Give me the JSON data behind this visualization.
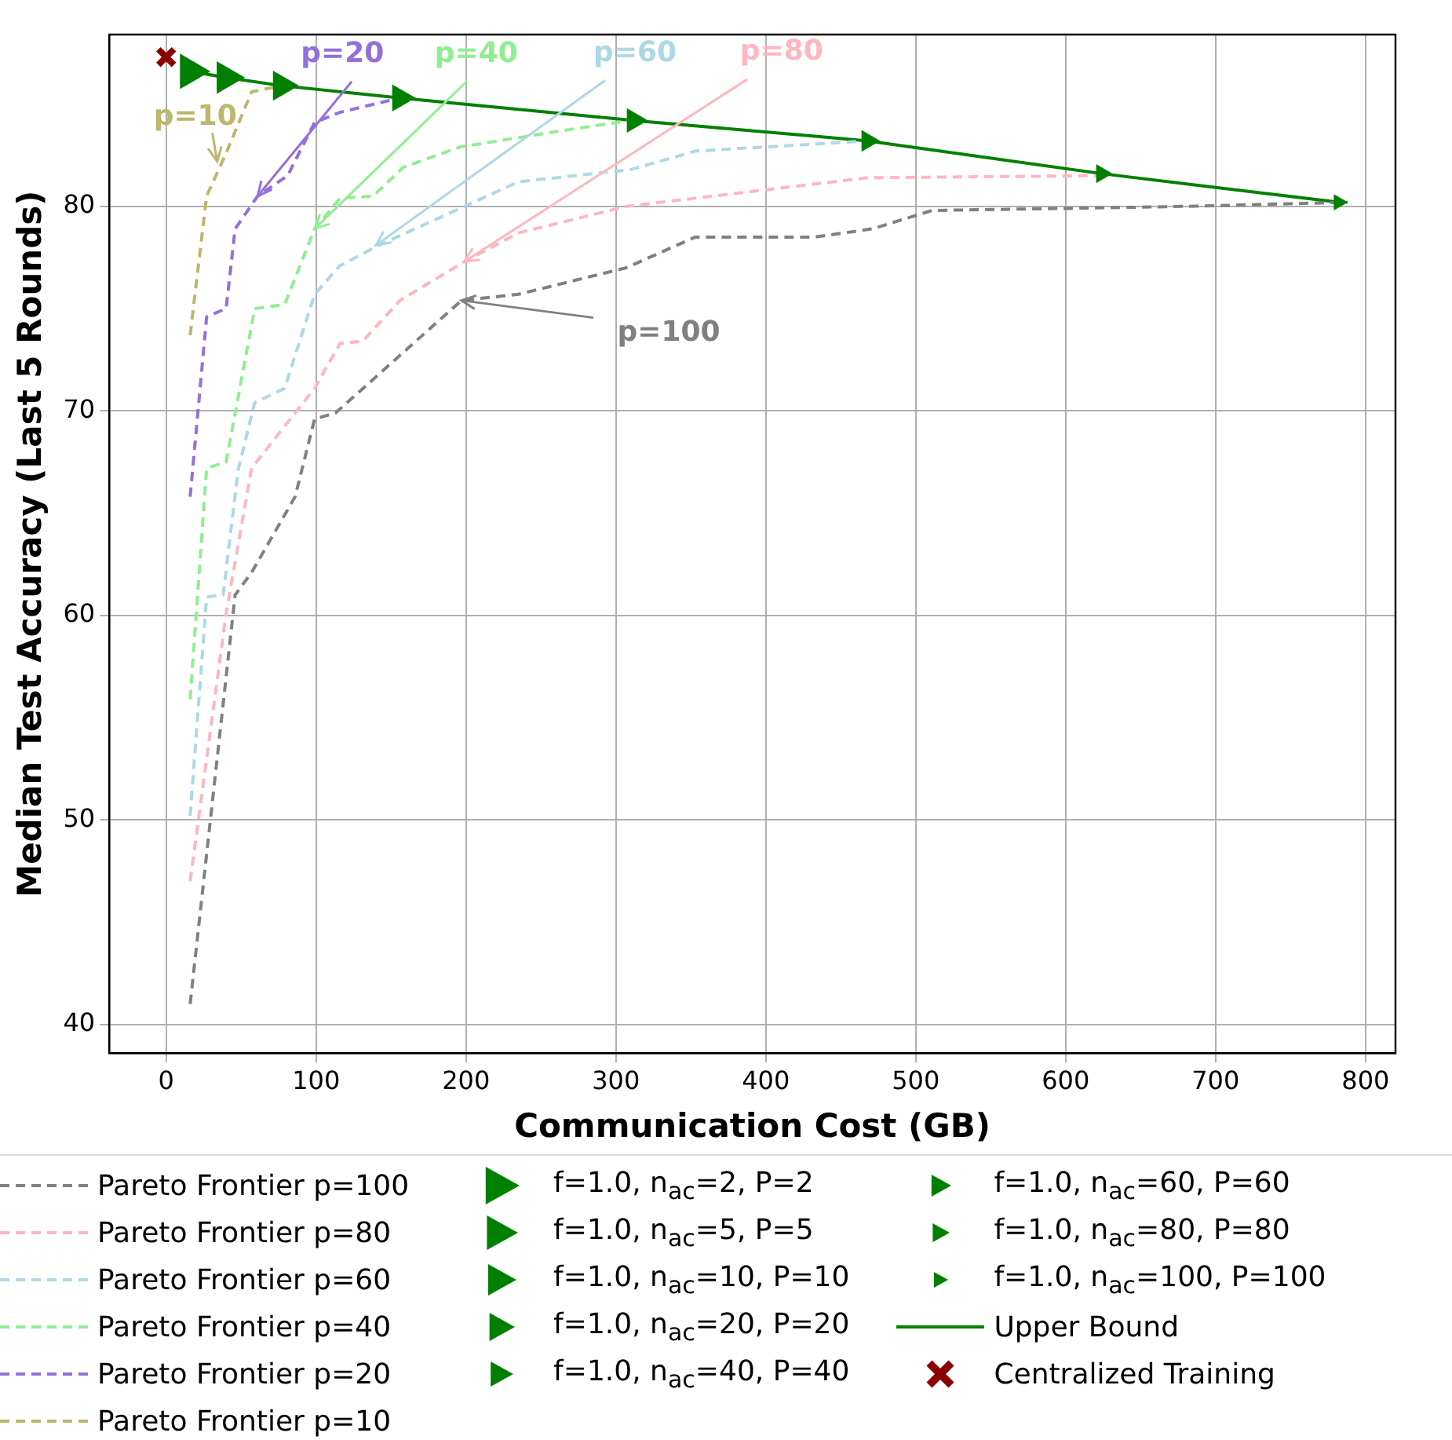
{
  "chart_data": {
    "type": "line",
    "xlabel": "Communication Cost (GB)",
    "ylabel": "Median Test Accuracy (Last 5 Rounds)",
    "xlim": [
      -38,
      820
    ],
    "xticks": [
      0,
      100,
      200,
      300,
      400,
      500,
      600,
      700,
      800
    ],
    "ylim": [
      38.6,
      88.4
    ],
    "yticks": [
      40,
      50,
      60,
      70,
      80
    ],
    "grid": true,
    "legend": "bottom",
    "series": [
      {
        "name": "Pareto Frontier p=100",
        "type": "line",
        "line_style": "dashed",
        "marker": "none",
        "color": "#808080",
        "x": [
          16,
          46,
          57,
          86,
          99,
          113,
          197,
          235,
          307,
          353,
          433,
          471,
          511,
          600,
          680,
          788
        ],
        "values": [
          41.0,
          61.0,
          62.1,
          65.8,
          69.6,
          69.9,
          75.4,
          75.7,
          77.0,
          78.5,
          78.5,
          78.9,
          79.8,
          79.9,
          80.0,
          80.2
        ]
      },
      {
        "name": "Pareto Frontier p=80",
        "type": "line",
        "line_style": "dashed",
        "marker": "none",
        "color": "#ffb6c1",
        "x": [
          16,
          40,
          57,
          72,
          99,
          116,
          131,
          156,
          199,
          235,
          307,
          353,
          468,
          622
        ],
        "values": [
          47.0,
          60.1,
          67.2,
          68.6,
          71.1,
          73.3,
          73.4,
          75.4,
          77.3,
          78.7,
          80.0,
          80.4,
          81.4,
          81.5
        ]
      },
      {
        "name": "Pareto Frontier p=60",
        "type": "line",
        "line_style": "dashed",
        "marker": "none",
        "color": "#add8e6",
        "x": [
          16,
          27,
          38,
          48,
          59,
          79,
          99,
          116,
          142,
          235,
          310,
          353,
          468
        ],
        "values": [
          50.2,
          60.9,
          61.0,
          67.1,
          70.4,
          71.1,
          75.7,
          77.1,
          78.1,
          81.2,
          81.8,
          82.7,
          83.2
        ]
      },
      {
        "name": "Pareto Frontier p=40",
        "type": "line",
        "line_style": "dashed",
        "marker": "none",
        "color": "#90ee90",
        "x": [
          16,
          27,
          40,
          59,
          79,
          99,
          116,
          138,
          158,
          196,
          264,
          310
        ],
        "values": [
          55.9,
          67.2,
          67.5,
          75.0,
          75.2,
          78.9,
          80.4,
          80.5,
          81.9,
          82.9,
          83.7,
          84.2
        ]
      },
      {
        "name": "Pareto Frontier p=20",
        "type": "line",
        "line_style": "dashed",
        "marker": "none",
        "color": "#9370db",
        "x": [
          16,
          27,
          40,
          46,
          61,
          81,
          99,
          116,
          156
        ],
        "values": [
          65.8,
          74.6,
          75.0,
          78.9,
          80.5,
          81.5,
          84.1,
          84.6,
          85.3
        ]
      },
      {
        "name": "Pareto Frontier p=10",
        "type": "line",
        "line_style": "dashed",
        "marker": "none",
        "color": "#bdb76b",
        "x": [
          16,
          27,
          40,
          57,
          77
        ],
        "values": [
          73.7,
          80.5,
          82.6,
          85.6,
          85.9
        ]
      },
      {
        "name": "f=1.0, n$_{ac}$=2, P=2",
        "type": "scatter",
        "marker": "triangle",
        "color": "#008000",
        "x": [
          16
        ],
        "values": [
          86.6
        ]
      },
      {
        "name": "f=1.0, n$_{ac}$=5, P=5",
        "type": "scatter",
        "marker": "triangle",
        "color": "#008000",
        "x": [
          40
        ],
        "values": [
          86.3
        ]
      },
      {
        "name": "f=1.0, n$_{ac}$=10, P=10",
        "type": "scatter",
        "marker": "triangle",
        "color": "#008000",
        "x": [
          77
        ],
        "values": [
          85.9
        ]
      },
      {
        "name": "f=1.0, n$_{ac}$=20, P=20",
        "type": "scatter",
        "marker": "triangle",
        "color": "#008000",
        "x": [
          156
        ],
        "values": [
          85.3
        ]
      },
      {
        "name": "f=1.0, n$_{ac}$=40, P=40",
        "type": "scatter",
        "marker": "triangle",
        "color": "#008000",
        "x": [
          312
        ],
        "values": [
          84.2
        ]
      },
      {
        "name": "f=1.0, n$_{ac}$=60, P=60",
        "type": "scatter",
        "marker": "triangle",
        "color": "#008000",
        "x": [
          468
        ],
        "values": [
          83.2
        ]
      },
      {
        "name": "f=1.0, n$_{ac}$=80, P=80",
        "type": "scatter",
        "marker": "triangle",
        "color": "#008000",
        "x": [
          624
        ],
        "values": [
          81.6
        ]
      },
      {
        "name": "f=1.0, n$_{ac}$=100, P=100",
        "type": "scatter",
        "marker": "triangle",
        "color": "#008000",
        "x": [
          782
        ],
        "values": [
          80.2
        ]
      },
      {
        "name": "Upper Bound",
        "type": "line",
        "line_style": "solid",
        "marker": "none",
        "color": "#008000",
        "x": [
          16,
          40,
          77,
          156,
          312,
          468,
          624,
          782
        ],
        "values": [
          86.6,
          86.3,
          85.9,
          85.3,
          84.2,
          83.2,
          81.6,
          80.2
        ]
      },
      {
        "name": "Centralized Training",
        "type": "scatter",
        "marker": "cross",
        "color": "#8b0000",
        "x": [
          0
        ],
        "values": [
          87.3
        ]
      }
    ],
    "annotations": [
      {
        "text": "p=10",
        "x": 34,
        "y": 82.2
      },
      {
        "text": "p=20",
        "x": 61,
        "y": 80.5
      },
      {
        "text": "p=40",
        "x": 99,
        "y": 78.9
      },
      {
        "text": "p=60",
        "x": 140,
        "y": 78.1
      },
      {
        "text": "p=80",
        "x": 199,
        "y": 77.3
      },
      {
        "text": "p=100",
        "x": 197,
        "y": 75.4
      }
    ]
  }
}
